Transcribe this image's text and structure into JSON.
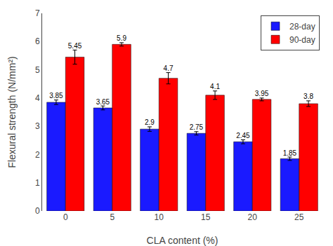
{
  "chart_data": {
    "type": "bar",
    "categories": [
      0,
      5,
      10,
      15,
      20,
      25
    ],
    "series": [
      {
        "name": "28-day",
        "color": "#1a1aff",
        "values": [
          3.85,
          3.65,
          2.9,
          2.75,
          2.45,
          1.85
        ],
        "errors": [
          0.08,
          0.07,
          0.08,
          0.06,
          0.07,
          0.06
        ]
      },
      {
        "name": "90-day",
        "color": "#ff0000",
        "values": [
          5.45,
          5.9,
          4.7,
          4.1,
          3.95,
          3.8
        ],
        "errors": [
          0.25,
          0.06,
          0.2,
          0.15,
          0.05,
          0.1
        ]
      }
    ],
    "x_label": "CLA content (%)",
    "y_label": "Flexural strength (N/mm²)",
    "ylim": [
      0,
      7
    ],
    "yticks": [
      0,
      1,
      2,
      3,
      4,
      5,
      6,
      7
    ],
    "data_labels": true,
    "legend": "upper right",
    "grid": false
  }
}
